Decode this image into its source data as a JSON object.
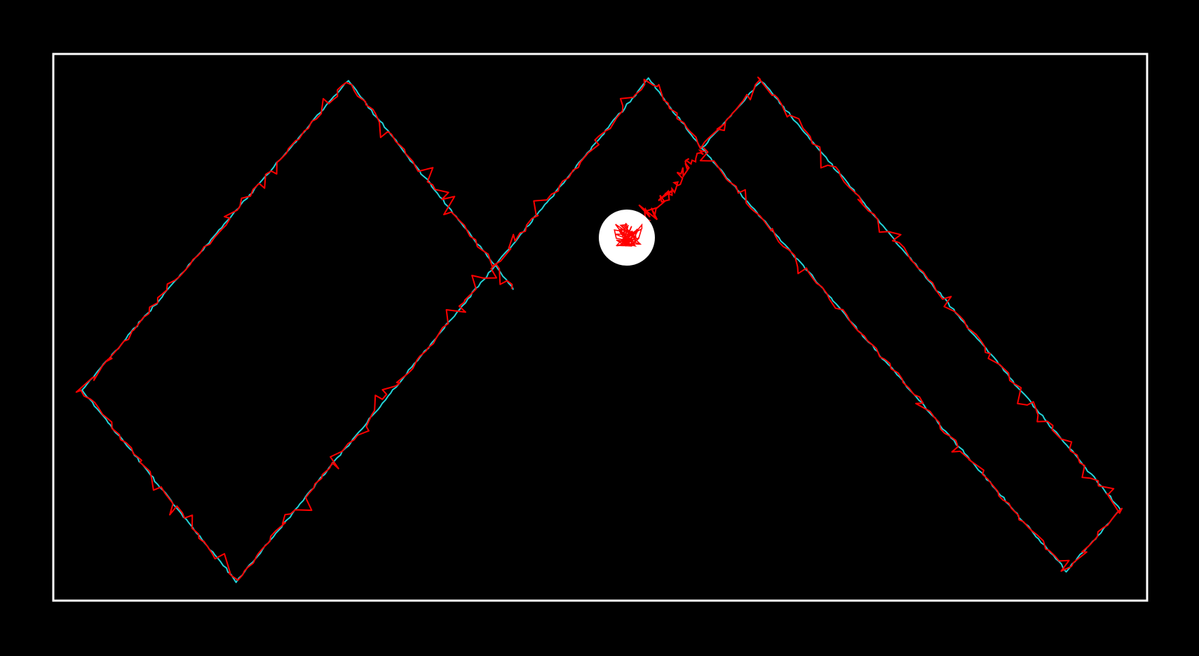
{
  "colors": {
    "background": "#000000",
    "frame": "#ffffff",
    "reference_path": "#22d3d8",
    "estimated_path": "#ff0000",
    "marker": "#ffffff"
  },
  "elements": [
    {
      "name": "boundary-frame",
      "kind": "rectangle",
      "color": "frame"
    },
    {
      "name": "reference-trajectory",
      "kind": "polyline",
      "color": "reference_path"
    },
    {
      "name": "estimated-trajectory",
      "kind": "noisy-polyline",
      "color": "estimated_path"
    },
    {
      "name": "goal-marker",
      "kind": "filled-circle",
      "color": "marker"
    }
  ]
}
